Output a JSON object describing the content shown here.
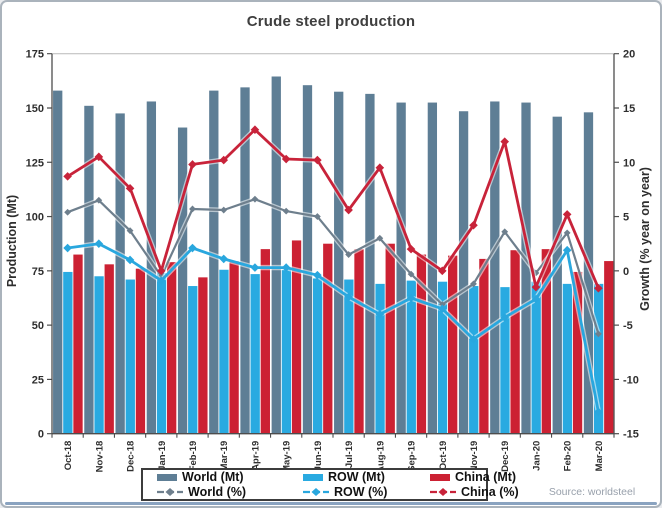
{
  "title": "Crude steel production",
  "source_note": "Source: worldsteel",
  "colors": {
    "world_bar": "#5e7e95",
    "row_bar": "#29aae1",
    "china_bar": "#cc2133",
    "world_line": "#6e7f8d",
    "row_line": "#29a7de",
    "china_line": "#c8233a",
    "axis": "#4d4d4d",
    "tick_text": "#2e2e2e",
    "plot_top_border": "#b9b9b9"
  },
  "chart_data": {
    "type": "combo bar+line",
    "title": "Crude steel production",
    "categories": [
      "Oct-18",
      "Nov-18",
      "Dec-18",
      "Jan-19",
      "Feb-19",
      "Mar-19",
      "Apr-19",
      "May-19",
      "Jun-19",
      "Jul-19",
      "Aug-19",
      "Sep-19",
      "Oct-19",
      "Nov-19",
      "Dec-19",
      "Jan-20",
      "Feb-20",
      "Mar-20"
    ],
    "bar_series": [
      {
        "key": "world",
        "name": "World (Mt)",
        "axis": "left",
        "color_key": "world_bar",
        "values": [
          158,
          151,
          147.5,
          153,
          141,
          158,
          159.5,
          164.5,
          160.5,
          157.5,
          156.5,
          152.5,
          152.5,
          148.5,
          153,
          152.5,
          146,
          148
        ]
      },
      {
        "key": "row",
        "name": "ROW (Mt)",
        "axis": "left",
        "color_key": "row_bar",
        "values": [
          74.5,
          72.5,
          71,
          74,
          68,
          75.5,
          73.5,
          75.5,
          71.5,
          71,
          69,
          70.5,
          70,
          68,
          67.5,
          70,
          69,
          69
        ]
      },
      {
        "key": "china",
        "name": "China (Mt)",
        "axis": "left",
        "color_key": "china_bar",
        "values": [
          82.5,
          78,
          76,
          79,
          72,
          79.5,
          85,
          89,
          87.5,
          85,
          87.5,
          82.5,
          82,
          80.5,
          84.5,
          85,
          74.5,
          79.5
        ]
      }
    ],
    "line_series": [
      {
        "key": "world",
        "name": "World (%)",
        "axis": "right",
        "color_key": "world_line",
        "marker_half": 3.4,
        "width": 2.2,
        "values": [
          5.4,
          6.5,
          3.7,
          -0.5,
          5.7,
          5.6,
          6.6,
          5.5,
          5.0,
          1.5,
          3.0,
          -0.3,
          -3.1,
          -1.2,
          3.6,
          -0.2,
          3.5,
          -5.8
        ]
      },
      {
        "key": "row",
        "name": "ROW (%)",
        "axis": "right",
        "color_key": "row_line",
        "marker_half": 4.3,
        "width": 2.8,
        "values": [
          2.1,
          2.5,
          1.0,
          -0.9,
          2.1,
          1.1,
          0.3,
          0.3,
          -0.4,
          -2.4,
          -4.0,
          -2.5,
          -3.5,
          -6.3,
          -4.3,
          -2.6,
          1.9,
          -13
        ]
      },
      {
        "key": "china",
        "name": "China (%)",
        "axis": "right",
        "color_key": "china_line",
        "marker_half": 4.3,
        "width": 2.8,
        "values": [
          8.7,
          10.5,
          7.6,
          0.0,
          9.8,
          10.2,
          13.0,
          10.3,
          10.2,
          5.6,
          9.5,
          2.0,
          0.0,
          4.2,
          11.9,
          -1.5,
          5.2,
          -1.6
        ]
      }
    ],
    "left_axis": {
      "title": "Production (Mt)",
      "min": 0,
      "max": 175,
      "step": 25,
      "ticks": [
        0,
        25,
        50,
        75,
        100,
        125,
        150,
        175
      ]
    },
    "right_axis": {
      "title": "Growth (% year on year)",
      "min": -15,
      "max": 20,
      "step": 5,
      "ticks": [
        -15,
        -10,
        -5,
        0,
        5,
        10,
        15,
        20
      ]
    },
    "x_axis": {
      "label_rotation": -90
    },
    "legend_position": "bottom",
    "grid": false
  }
}
